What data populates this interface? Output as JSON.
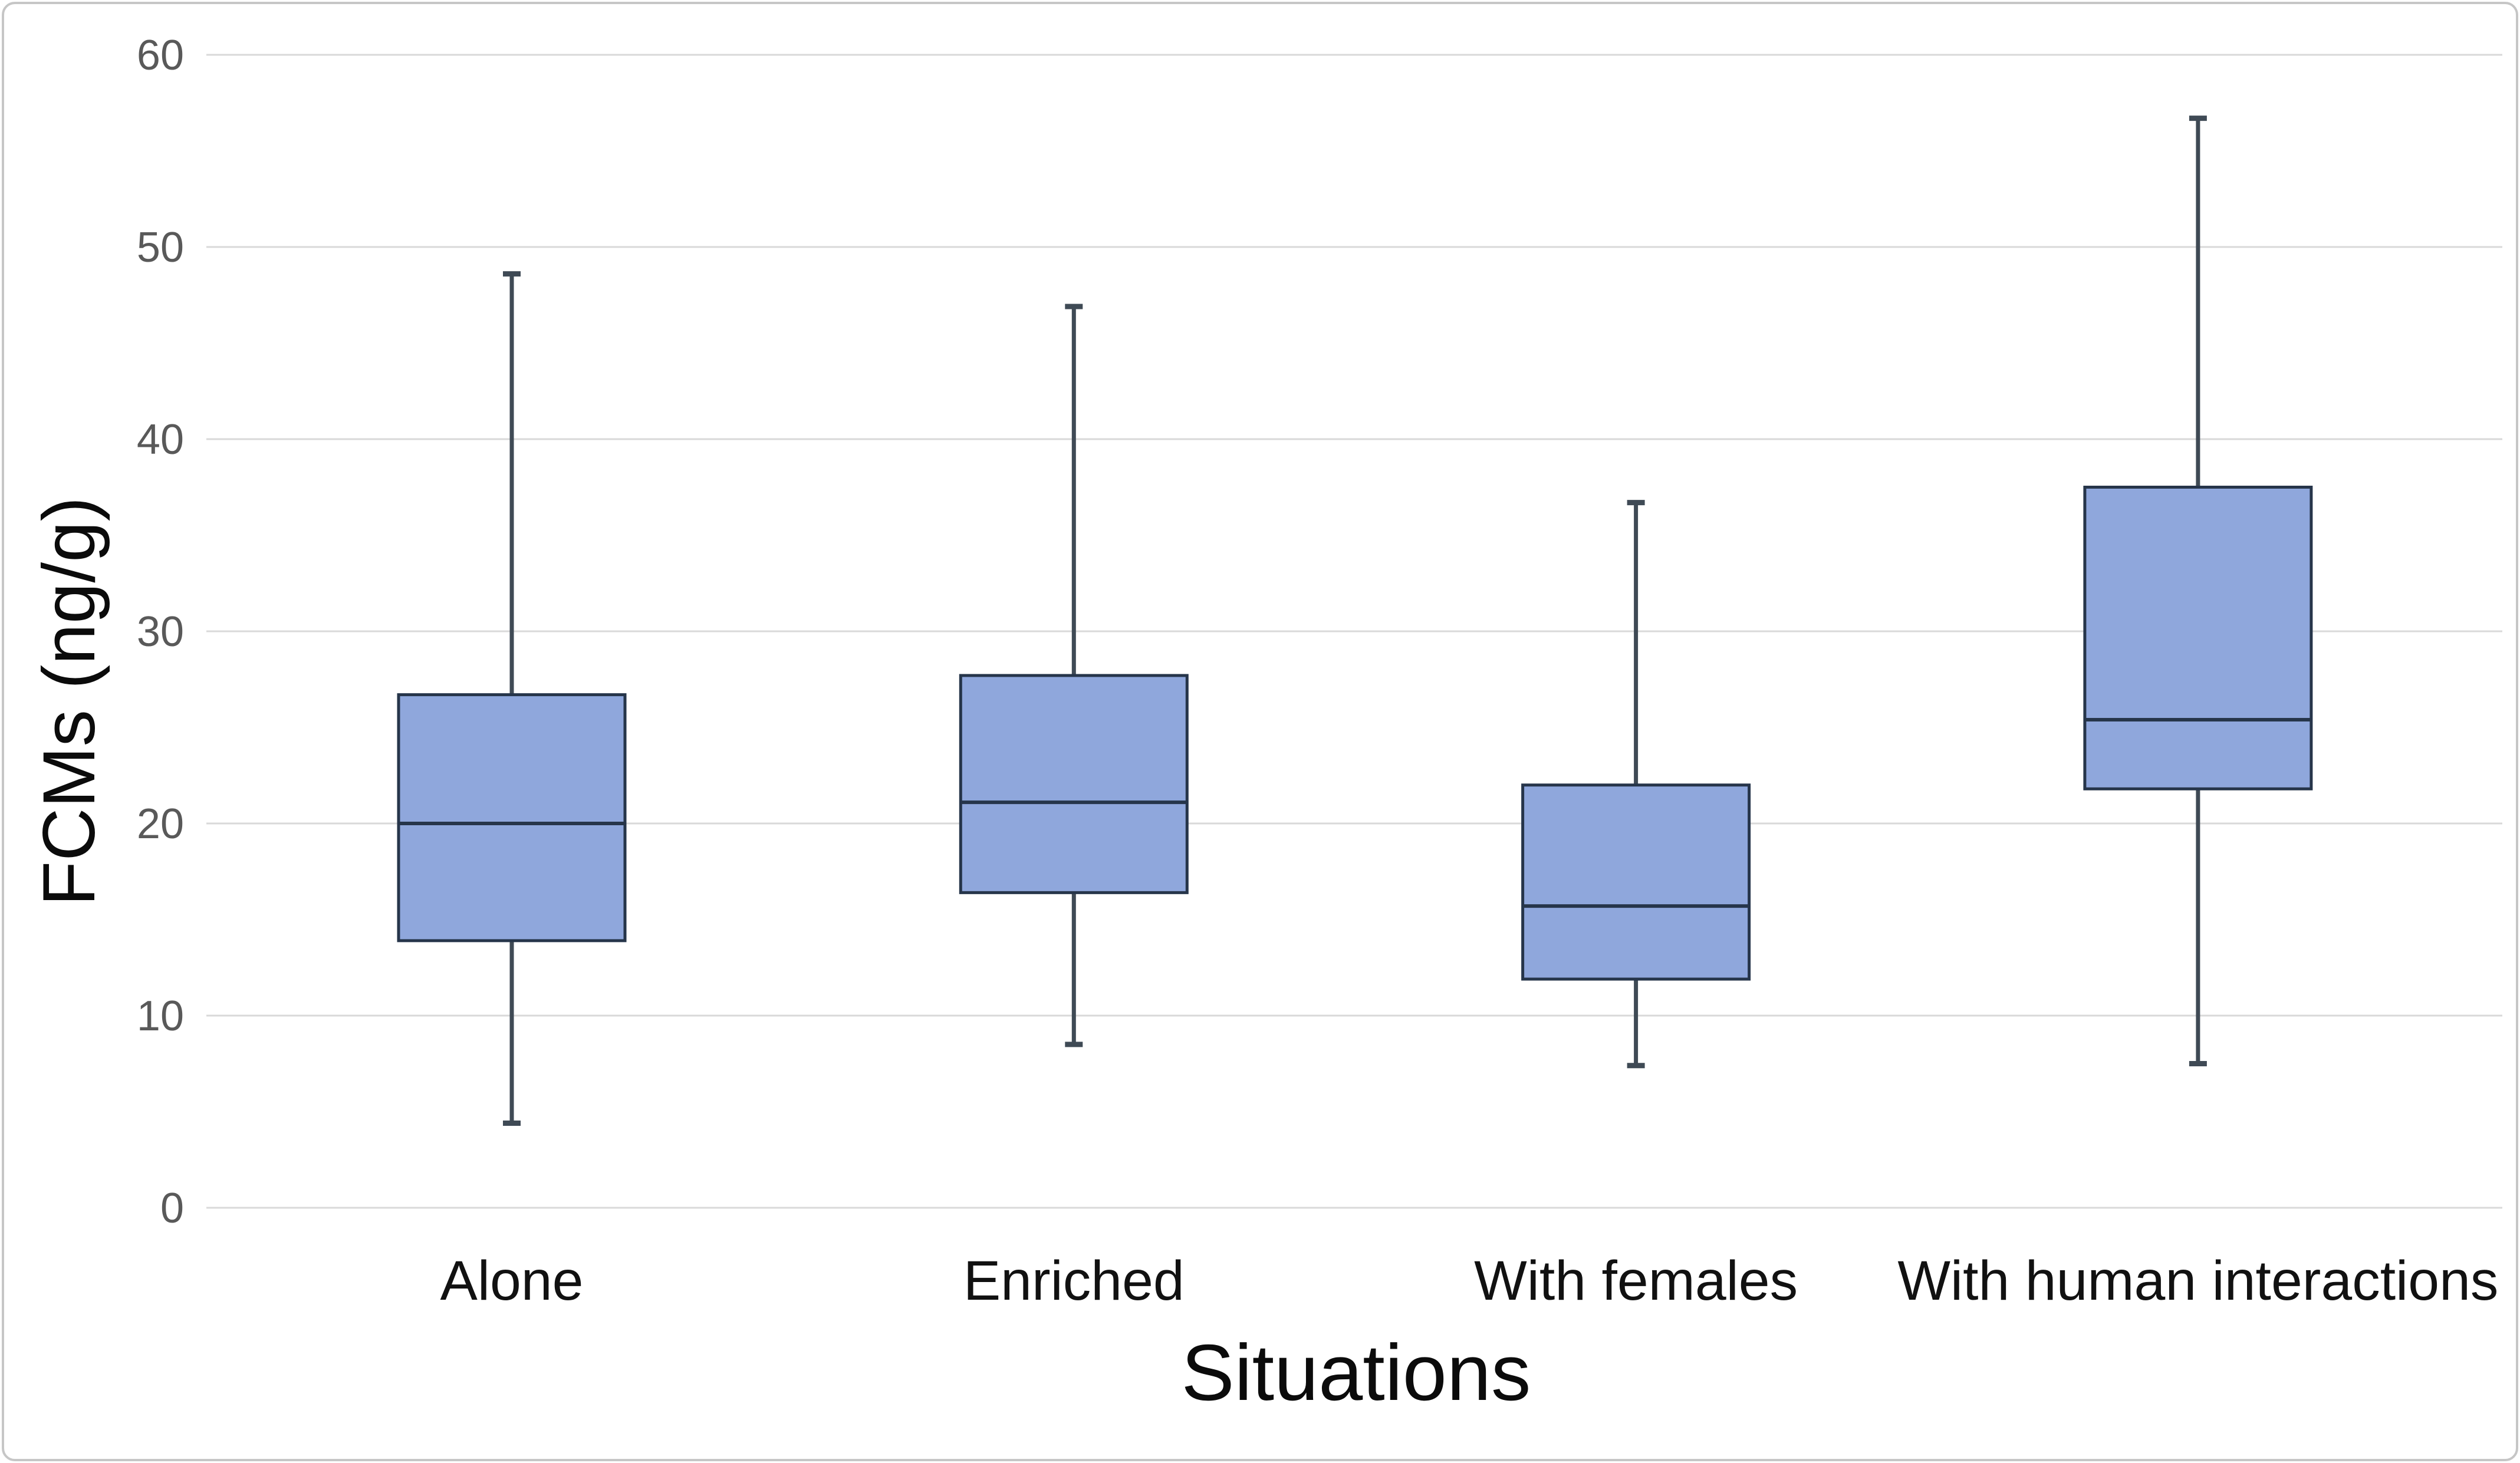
{
  "figure": {
    "background_color": "#ffffff",
    "outer_border_color": "#c6c6c6"
  },
  "chart_data": {
    "type": "boxplot",
    "title": "",
    "xlabel": "Situations",
    "ylabel": "FCMs (ng/g)",
    "categories": [
      "Alone",
      "Enriched",
      "With females",
      "With human interactions"
    ],
    "series": [
      {
        "name": "Alone",
        "min": 4.4,
        "q1": 13.9,
        "median": 20.0,
        "q3": 26.7,
        "max": 48.6
      },
      {
        "name": "Enriched",
        "min": 8.5,
        "q1": 16.4,
        "median": 21.1,
        "q3": 27.7,
        "max": 46.9
      },
      {
        "name": "With females",
        "min": 7.4,
        "q1": 11.9,
        "median": 15.7,
        "q3": 22.0,
        "max": 36.7
      },
      {
        "name": "With human interactions",
        "min": 7.5,
        "q1": 21.8,
        "median": 25.4,
        "q3": 37.5,
        "max": 56.7
      }
    ],
    "ylim": [
      0,
      60
    ],
    "yticks": [
      0,
      10,
      20,
      30,
      40,
      50,
      60
    ],
    "grid": "horizontal",
    "legend": "none",
    "colors": {
      "box_fill": "#8FA7DC",
      "box_border": "#26354A",
      "median_line": "#26354A",
      "whisker": "#3F4A55",
      "gridline": "#D9D9D9",
      "tick_text": "#595959",
      "label_text": "#111111"
    }
  }
}
